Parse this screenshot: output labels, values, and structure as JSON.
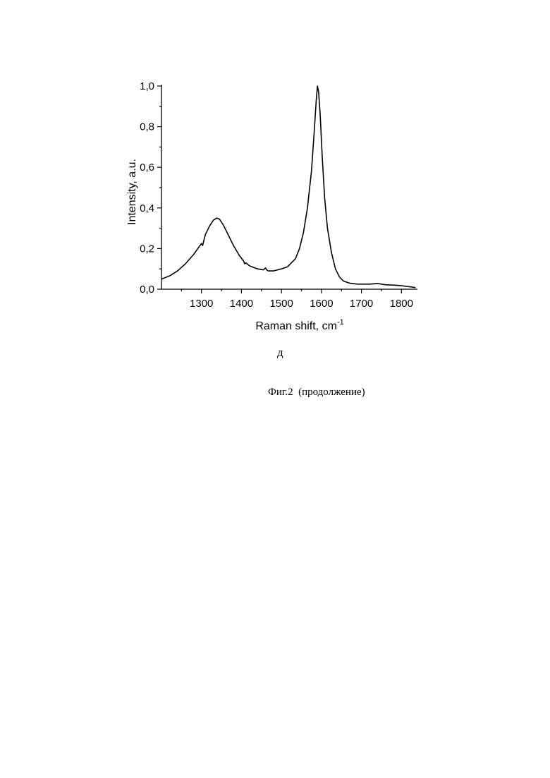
{
  "chart_data": {
    "type": "line",
    "xlabel": "Raman shift, cm",
    "xlabel_sup": "-1",
    "ylabel": "Intensity, a.u.",
    "xlim": [
      1200,
      1840
    ],
    "ylim": [
      0,
      1.0
    ],
    "x_ticks": [
      1300,
      1400,
      1500,
      1600,
      1700,
      1800
    ],
    "x_tick_labels": [
      "1300",
      "1400",
      "1500",
      "1600",
      "1700",
      "1800"
    ],
    "y_ticks": [
      0.0,
      0.2,
      0.4,
      0.6,
      0.8,
      1.0
    ],
    "y_tick_labels": [
      "0,0",
      "0,2",
      "0,4",
      "0,6",
      "0,8",
      "1,0"
    ],
    "grid": false,
    "series": [
      {
        "x": [
          1200,
          1220,
          1240,
          1260,
          1280,
          1300,
          1303,
          1306,
          1310,
          1320,
          1330,
          1338,
          1345,
          1355,
          1365,
          1380,
          1395,
          1405,
          1408,
          1411,
          1420,
          1440,
          1455,
          1460,
          1463,
          1467,
          1480,
          1500,
          1515,
          1525,
          1535,
          1545,
          1555,
          1565,
          1575,
          1582,
          1587,
          1590,
          1593,
          1597,
          1602,
          1608,
          1615,
          1625,
          1635,
          1645,
          1655,
          1670,
          1690,
          1720,
          1740,
          1760,
          1780,
          1800,
          1820,
          1835
        ],
        "y": [
          0.05,
          0.065,
          0.09,
          0.125,
          0.17,
          0.225,
          0.215,
          0.24,
          0.27,
          0.31,
          0.34,
          0.35,
          0.345,
          0.315,
          0.275,
          0.215,
          0.165,
          0.14,
          0.125,
          0.13,
          0.115,
          0.1,
          0.095,
          0.105,
          0.095,
          0.09,
          0.09,
          0.1,
          0.11,
          0.13,
          0.15,
          0.2,
          0.28,
          0.4,
          0.58,
          0.78,
          0.93,
          1.0,
          0.97,
          0.85,
          0.65,
          0.45,
          0.3,
          0.18,
          0.1,
          0.06,
          0.04,
          0.03,
          0.025,
          0.025,
          0.028,
          0.022,
          0.02,
          0.017,
          0.012,
          0.008
        ]
      }
    ]
  },
  "figure": {
    "panel_label": "д",
    "caption": "Фиг.2  (продолжение)"
  }
}
